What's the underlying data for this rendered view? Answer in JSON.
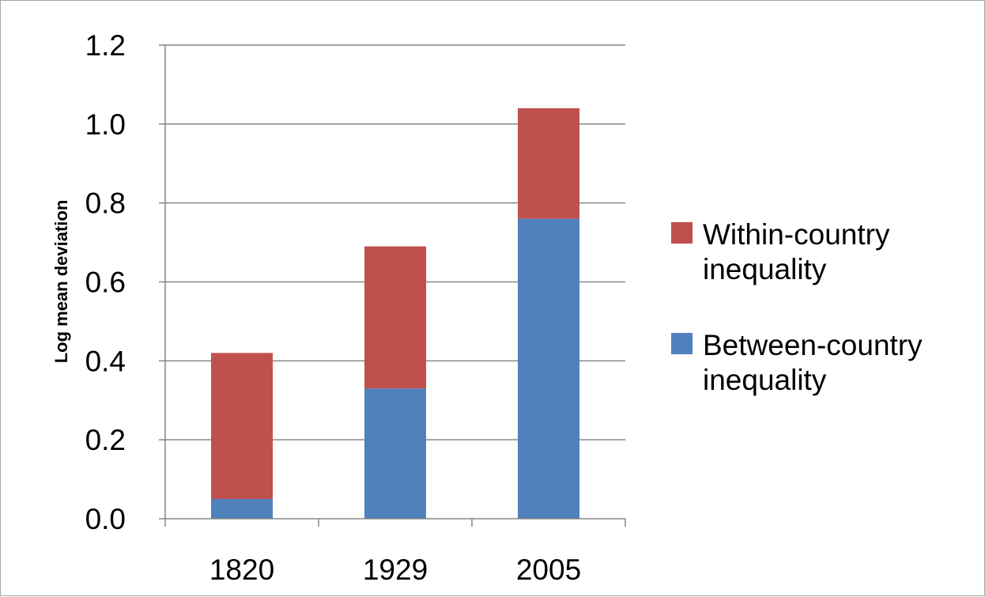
{
  "chart_data": {
    "type": "bar",
    "stacked": true,
    "categories": [
      "1820",
      "1929",
      "2005"
    ],
    "series": [
      {
        "name": "Between-country inequality",
        "name_lines": [
          "Between-country",
          "inequality"
        ],
        "values": [
          0.05,
          0.33,
          0.76
        ],
        "color": "#4f81bd"
      },
      {
        "name": "Within-country inequality",
        "name_lines": [
          "Within-country",
          "inequality"
        ],
        "values": [
          0.37,
          0.36,
          0.28
        ],
        "color": "#c0504d"
      }
    ],
    "title": "",
    "xlabel": "",
    "ylabel": "Log mean deviation",
    "ylim": [
      0,
      1.2
    ],
    "yticks": [
      "0.0",
      "0.2",
      "0.4",
      "0.6",
      "0.8",
      "1.0",
      "1.2"
    ],
    "grid": true,
    "legend_position": "right",
    "legend_order": [
      "Within-country inequality",
      "Between-country inequality"
    ]
  }
}
